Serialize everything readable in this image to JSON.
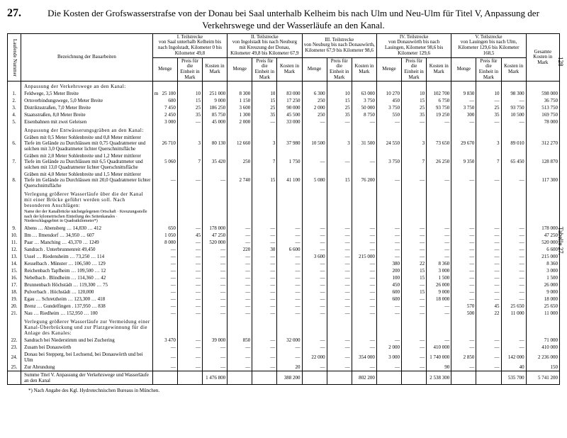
{
  "page_number": "128",
  "table_label": "Tabelle 27.",
  "title_number": "27.",
  "title": "Die Kosten der Grofswasserstrafse von der Donau bei Saal unterhalb Kelheim bis nach Ulm und Neu-Ulm für Titel V, Anpassung der Verkehrswege und der Wasserläufe an den Kanal.",
  "header": {
    "col_num": "Laufende Nummer",
    "col_desc": "Bezeichnung der Bauarbeiten",
    "sections": [
      "I. Teilstrecke\nvon Saal unterhalb Kelheim bis nach Ingolstadt, Kilometer 0 bis Kilometer 49,8",
      "II. Teilstrecke\nvon Ingolstadt bis nach Neuburg mit Kreuzung der Donau, Kilometer 49,8 bis Kilometer 67,9",
      "III. Teilstrecke\nvon Neuburg bis nach Donauwörth, Kilometer 67,9 bis Kilometer 98,6",
      "IV. Teilstrecke\nvon Donauwörth bis nach Lauingen, Kilometer 98,6 bis Kilometer 129,6",
      "V. Teilstrecke\nvon Lauingen bis nach Ulm, Kilometer 129,6 bis Kilometer 168,5"
    ],
    "subcols": [
      "Menge",
      "Preis für die Einheit in Mark",
      "Kosten in Mark"
    ],
    "total": "Gesamte Kosten in Mark"
  },
  "group1_title": "Anpassung der Verkehrswege an den Kanal:",
  "rows1": [
    {
      "n": "1.",
      "d": "Feldwege, 3,5 Meter Breite",
      "u": "m",
      "v": [
        "25 100",
        "10",
        "251 000",
        "8 300",
        "10",
        "83 000",
        "6 300",
        "10",
        "63 000",
        "10 270",
        "10",
        "102 700",
        "9 830",
        "10",
        "98 300"
      ],
      "t": "598 000"
    },
    {
      "n": "2.",
      "d": "Ortsverbindungswege, 5,0 Meter Breite",
      "u": "",
      "v": [
        "600",
        "15",
        "9 000",
        "1 150",
        "15",
        "17 250",
        "250",
        "15",
        "3 750",
        "450",
        "15",
        "6 750",
        "—",
        "—",
        "—"
      ],
      "t": "36 750"
    },
    {
      "n": "3.",
      "d": "Distriktsstraßen, 7,0 Meter Breite",
      "u": "",
      "v": [
        "7 450",
        "25",
        "186 250",
        "3 600",
        "25",
        "90 000",
        "2 000",
        "25",
        "50 000",
        "3 750",
        "25",
        "93 750",
        "3 750",
        "25",
        "93 750"
      ],
      "t": "513 750"
    },
    {
      "n": "4.",
      "d": "Staatsstraßen, 8,0 Meter Breite",
      "u": "",
      "v": [
        "2 450",
        "35",
        "85 750",
        "1 300",
        "35",
        "45 500",
        "250",
        "35",
        "8 750",
        "550",
        "35",
        "19 250",
        "300",
        "35",
        "10 500"
      ],
      "t": "169 750"
    },
    {
      "n": "5.",
      "d": "Eisenbahnen mit zwei Geleisen",
      "u": "",
      "v": [
        "3 000",
        "—",
        "45 000",
        "2 000",
        "—",
        "33 000",
        "—",
        "—",
        "—",
        "—",
        "—",
        "—",
        "—",
        "—",
        "—"
      ],
      "t": "78 000"
    }
  ],
  "group2_title": "Anpassung der Entwässerungsgräben an den Kanal:",
  "rows2": [
    {
      "n": "6.",
      "d": "Gräben mit 0,5 Meter Sohlenbreite und 0,8 Meter mittlerer Tiefe im Gelände zu Durchlässen mit 0,75 Quadratmeter und solchen mit 3,0 Quadratmeter lichter Querschnittsfläche",
      "v": [
        "26 710",
        "3",
        "80 130",
        "12 660",
        "3",
        "37 980",
        "10 500",
        "3",
        "31 500",
        "24 550",
        "3",
        "73 650",
        "29 670",
        "3",
        "89 010"
      ],
      "t": "312 270"
    },
    {
      "n": "7.",
      "d": "Gräben mit 2,0 Meter Sohlenbreite und 1,2 Meter mittlerer Tiefe im Gelände zu Durchlässen mit 6,5 Quadratmeter und solchen mit 13,0 Quadratmeter lichter Querschnittsfläche",
      "v": [
        "5 060",
        "7",
        "35 420",
        "250",
        "7",
        "1 750",
        "—",
        "—",
        "—",
        "3 750",
        "7",
        "26 250",
        "9 350",
        "7",
        "65 450"
      ],
      "t": "128 870"
    },
    {
      "n": "8.",
      "d": "Gräben mit 4,0 Meter Sohlenbreite und 1,5 Meter mittlerer Tiefe im Gelände zu Durchlässen mit 20,0 Quadratmeter lichter Querschnittsfläche",
      "v": [
        "—",
        "—",
        "—",
        "2 740",
        "15",
        "41 100",
        "5 080",
        "15",
        "76 200",
        "—",
        "—",
        "—",
        "—",
        "—",
        "—"
      ],
      "t": "117 300"
    }
  ],
  "group3_title": "Verlegung größerer Wasserläufe über die der Kanal mit einer Brücke geführt werden soll. Nach besonderen Anschlägen:",
  "group3_subhead": [
    "Name der der Kanalbrücke nächstgelegenen Ortschaft",
    "Kreuzungsstelle nach der kilometrischen Einteilung des Seitenkanales",
    "Niederschlagsgebiet in Quadratkilometer*)"
  ],
  "rows3": [
    {
      "n": "9.",
      "d": "Abens … Abensberg … 14,830",
      "s": "412",
      "v": [
        "650",
        "—",
        "178 000",
        "—",
        "—",
        "—",
        "—",
        "—",
        "—",
        "—",
        "—",
        "—",
        "—",
        "—",
        "—"
      ],
      "t": "178 000"
    },
    {
      "n": "10.",
      "d": "Ilm … Ilmendorf … 34,950",
      "s": "607",
      "v": [
        "1 050",
        "45",
        "47 250",
        "—",
        "—",
        "—",
        "—",
        "—",
        "—",
        "—",
        "—",
        "—",
        "—",
        "—",
        "—"
      ],
      "t": "47 250"
    },
    {
      "n": "11.",
      "d": "Paar … Manching … 43,370",
      "s": "1249",
      "v": [
        "8 000",
        "—",
        "520 000",
        "—",
        "—",
        "—",
        "—",
        "—",
        "—",
        "—",
        "—",
        "—",
        "—",
        "—",
        "—"
      ],
      "t": "520 000"
    },
    {
      "n": "12.",
      "d": "Sandrach . Unterbrunnenreit 49,450",
      "s": "",
      "v": [
        "—",
        "—",
        "—",
        "220",
        "30",
        "6 600",
        "—",
        "—",
        "—",
        "—",
        "—",
        "—",
        "—",
        "—",
        "—"
      ],
      "t": "6 600"
    },
    {
      "n": "13.",
      "d": "Ussel … Riedensheim … 73,250",
      "s": "114",
      "v": [
        "—",
        "—",
        "—",
        "—",
        "—",
        "—",
        "3 600",
        "—",
        "215 000",
        "—",
        "—",
        "—",
        "—",
        "—",
        "—"
      ],
      "t": "215 000"
    },
    {
      "n": "14.",
      "d": "Kesselbach . Münster … 106,500",
      "s": "129",
      "v": [
        "—",
        "—",
        "—",
        "—",
        "—",
        "—",
        "—",
        "—",
        "—",
        "380",
        "22",
        "8 360",
        "—",
        "—",
        "—"
      ],
      "t": "8 360"
    },
    {
      "n": "15.",
      "d": "Reichenbach Tapfheim … 109,500",
      "s": "12",
      "v": [
        "—",
        "—",
        "—",
        "—",
        "—",
        "—",
        "—",
        "—",
        "—",
        "200",
        "15",
        "3 000",
        "—",
        "—",
        "—"
      ],
      "t": "3 000"
    },
    {
      "n": "16.",
      "d": "Nebelbach . Blindheim … 114,360",
      "s": "42",
      "v": [
        "—",
        "—",
        "—",
        "—",
        "—",
        "—",
        "—",
        "—",
        "—",
        "100",
        "15",
        "1 500",
        "—",
        "—",
        "—"
      ],
      "t": "1 500"
    },
    {
      "n": "17.",
      "d": "Brunnenbach Höchstädt … 119,300",
      "s": "75",
      "v": [
        "—",
        "—",
        "—",
        "—",
        "—",
        "—",
        "—",
        "—",
        "—",
        "450",
        "—",
        "26 000",
        "—",
        "—",
        "—"
      ],
      "t": "26 000"
    },
    {
      "n": "18.",
      "d": "Pulverbach . Höchstädt … 120,000",
      "s": "",
      "v": [
        "—",
        "—",
        "—",
        "—",
        "—",
        "—",
        "—",
        "—",
        "—",
        "600",
        "15",
        "9 000",
        "—",
        "—",
        "—"
      ],
      "t": "9 000"
    },
    {
      "n": "19.",
      "d": "Egau … Schretzheim … 123,300",
      "s": "418",
      "v": [
        "—",
        "—",
        "—",
        "—",
        "—",
        "—",
        "—",
        "—",
        "—",
        "600",
        "—",
        "18 000",
        "—",
        "—",
        "—"
      ],
      "t": "18 000"
    },
    {
      "n": "20.",
      "d": "Brenz … Gundelfingen . 137,950",
      "s": "838",
      "v": [
        "—",
        "—",
        "—",
        "—",
        "—",
        "—",
        "—",
        "—",
        "—",
        "—",
        "—",
        "—",
        "570",
        "45",
        "25 650"
      ],
      "t": "25 650"
    },
    {
      "n": "21.",
      "d": "Nau … Riedheim … 152,950",
      "s": "100",
      "v": [
        "—",
        "—",
        "—",
        "—",
        "—",
        "—",
        "—",
        "—",
        "—",
        "—",
        "—",
        "—",
        "500",
        "22",
        "11 000"
      ],
      "t": "11 000"
    }
  ],
  "group4_title": "Verlegung größerer Wasserläufe zur Vermeidung einer Kanal-Überbrückung und zur Platzgewinnung für die Anlage des Kanales:",
  "rows4": [
    {
      "n": "22.",
      "d": "Sandrach bei Niederstimm und bei Zuchering",
      "v": [
        "3 470",
        "—",
        "39 000",
        "850",
        "—",
        "32 000",
        "—",
        "—",
        "—",
        "—",
        "—",
        "—",
        "—",
        "—",
        "—"
      ],
      "t": "71 000"
    },
    {
      "n": "23.",
      "d": "Zusam bei Donauwörth",
      "v": [
        "—",
        "—",
        "—",
        "—",
        "—",
        "—",
        "—",
        "—",
        "—",
        "2 000",
        "—",
        "410 000",
        "—",
        "—",
        "—"
      ],
      "t": "410 000"
    },
    {
      "n": "24.",
      "d": "Donau bei Stepperg, bei Lechsend, bei Donauwörth und bei Ulm",
      "v": [
        "—",
        "—",
        "—",
        "—",
        "—",
        "—",
        "22 000",
        "—",
        "354 000",
        "3 000",
        "—",
        "1 740 000",
        "2 850",
        "—",
        "142 000"
      ],
      "t": "2 236 000"
    },
    {
      "n": "25.",
      "d": "Zur Abrundung",
      "v": [
        "—",
        "—",
        "—",
        "—",
        "—",
        "20",
        "—",
        "—",
        "—",
        "—",
        "—",
        "90",
        "—",
        "—",
        "40"
      ],
      "t": "150"
    }
  ],
  "sum_row": {
    "d": "Summe Titel V. Anpassung der Verkehrswege und Wasserläufe an den Kanal",
    "v": [
      "",
      "",
      "1 476 800",
      "",
      "",
      "388 200",
      "",
      "",
      "802 200",
      "",
      "",
      "2 538 300",
      "",
      "",
      "535 700"
    ],
    "t": "5 741 200"
  },
  "footnote": "*) Nach Angabe des Kgl. Hydrotechnischen Bureaus in München."
}
